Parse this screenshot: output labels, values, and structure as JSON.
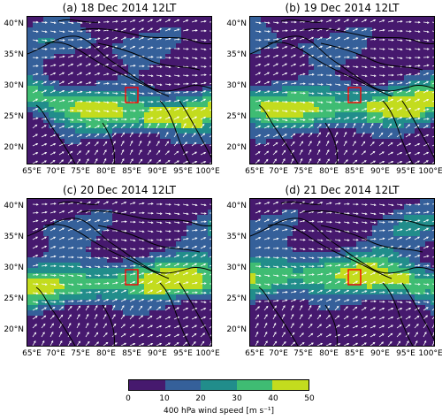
{
  "panels": [
    {
      "title": "(a) 18 Dec 2014 12LT",
      "variant": 0
    },
    {
      "title": "(b) 19 Dec 2014 12LT",
      "variant": 1
    },
    {
      "title": "(c) 20 Dec 2014 12LT",
      "variant": 2
    },
    {
      "title": "(d) 21 Dec 2014 12LT",
      "variant": 3
    }
  ],
  "axes": {
    "lon_labels": [
      "65°E",
      "70°E",
      "75°E",
      "80°E",
      "85°E",
      "90°E",
      "95°E",
      "100°E"
    ],
    "lat_labels": [
      "40°N",
      "35°N",
      "30°N",
      "25°N",
      "20°N"
    ]
  },
  "colorbar": {
    "ticks": [
      "0",
      "10",
      "20",
      "30",
      "40",
      "50"
    ],
    "colors": [
      "#46196e",
      "#35609a",
      "#218d8b",
      "#3fbc73",
      "#c3dc1e"
    ],
    "label": "400 hPa wind speed [m s⁻¹]"
  },
  "highlight_color": "#ff0000"
}
